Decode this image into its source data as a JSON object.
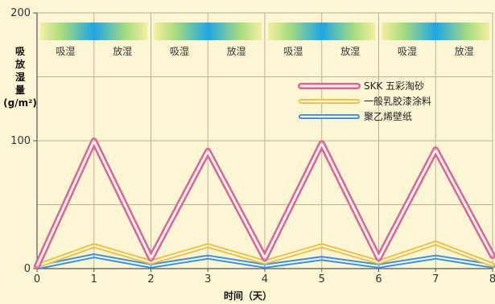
{
  "chart_data": {
    "type": "line",
    "ylabel_lines": [
      "吸",
      "放",
      "湿",
      "量"
    ],
    "yunit": "(g/m²)",
    "xlabel": "时间（天）",
    "x": [
      0,
      1,
      2,
      3,
      4,
      5,
      6,
      7,
      8
    ],
    "xlim": [
      0,
      8
    ],
    "ylim": [
      0,
      200
    ],
    "y_ticks": [
      0,
      100,
      200
    ],
    "grid": true,
    "legend_position": "top-right",
    "band_labels": [
      "吸湿",
      "放湿",
      "吸湿",
      "放湿",
      "吸湿",
      "放湿",
      "吸湿",
      "放湿"
    ],
    "series": [
      {
        "name": "SKK 五彩淘砂",
        "color": "#d9678f",
        "values": [
          2,
          100,
          8,
          92,
          8,
          98,
          8,
          93,
          10
        ]
      },
      {
        "name": "一般乳胶漆涂料",
        "color": "#f2bf3a",
        "values": [
          2,
          18,
          5,
          18,
          5,
          18,
          5,
          20,
          3
        ]
      },
      {
        "name": "聚乙烯壁纸",
        "color": "#3b8fd6",
        "values": [
          1,
          10,
          2,
          9,
          2,
          8,
          2,
          9,
          2
        ]
      }
    ]
  }
}
